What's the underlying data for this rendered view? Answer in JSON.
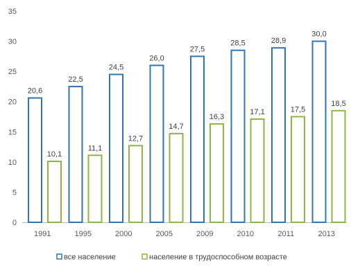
{
  "chart_data": {
    "type": "bar",
    "categories": [
      "1991",
      "1995",
      "2000",
      "2005",
      "2009",
      "2010",
      "2011",
      "2013"
    ],
    "series": [
      {
        "name": "все население",
        "values": [
          20.6,
          22.5,
          24.5,
          26.0,
          27.5,
          28.5,
          28.9,
          30.0
        ],
        "labels": [
          "20,6",
          "22,5",
          "24,5",
          "26,0",
          "27,5",
          "28,5",
          "28,9",
          "30,0"
        ],
        "color": "#2E75B6"
      },
      {
        "name": "население в трудоспособном возрасте",
        "values": [
          10.1,
          11.1,
          12.7,
          14.7,
          16.3,
          17.1,
          17.5,
          18.5
        ],
        "labels": [
          "10,1",
          "11,1",
          "12,7",
          "14,7",
          "16,3",
          "17,1",
          "17,5",
          "18,5"
        ],
        "color": "#8DB645"
      }
    ],
    "y_ticks": [
      0,
      5,
      10,
      15,
      20,
      25,
      30,
      35
    ],
    "y_tick_labels": [
      "0",
      "5",
      "10",
      "15",
      "20",
      "25",
      "30",
      "35"
    ],
    "ylim": [
      0,
      35
    ],
    "grid": false,
    "bar_style": "outlined",
    "legend_position": "bottom",
    "axis_color": "#BFBFBF"
  }
}
